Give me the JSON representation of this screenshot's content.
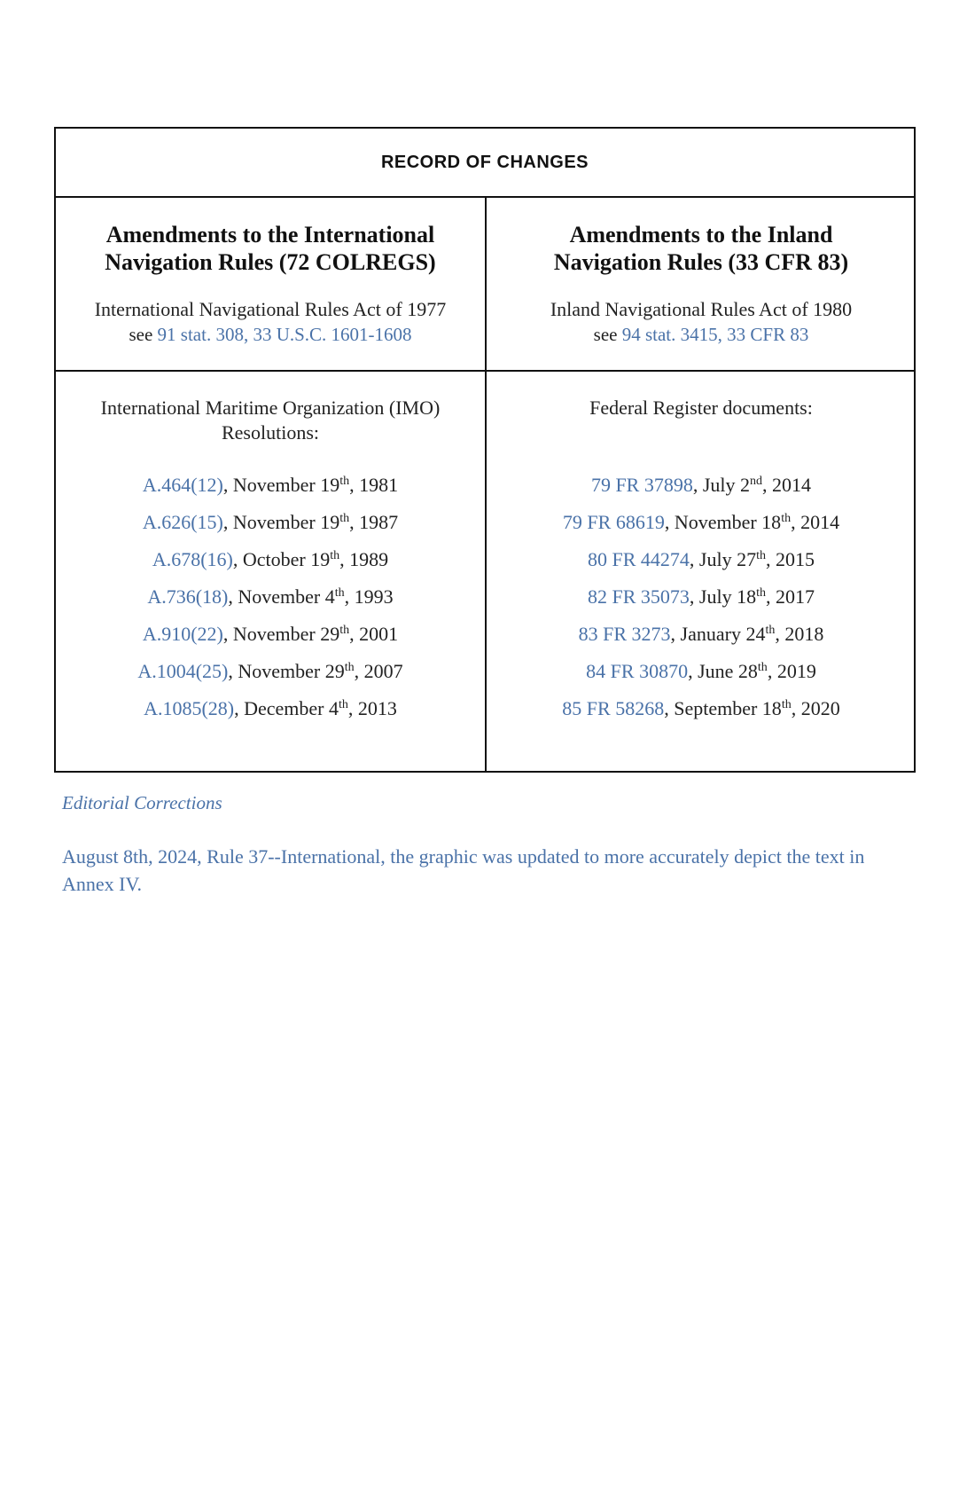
{
  "table": {
    "title": "RECORD OF CHANGES",
    "international": {
      "heading_line1": "Amendments to the International",
      "heading_line2": "Navigation Rules (72 COLREGS)",
      "act": "International Navigational Rules Act of 1977",
      "see_prefix": "see",
      "see_link": "91 stat. 308, 33 U.S.C. 1601-1608",
      "intro_line1": "International Maritime Organization (IMO)",
      "intro_line2": "Resolutions:",
      "entries": [
        {
          "ref": "A.464(12)",
          "month": ", November 19",
          "suffix": "th",
          "year": ", 1981"
        },
        {
          "ref": "A.626(15)",
          "month": ", November 19",
          "suffix": "th",
          "year": ", 1987"
        },
        {
          "ref": "A.678(16)",
          "month": ", October 19",
          "suffix": "th",
          "year": ", 1989"
        },
        {
          "ref": "A.736(18)",
          "month": ", November 4",
          "suffix": "th",
          "year": ", 1993"
        },
        {
          "ref": "A.910(22)",
          "month": ", November 29",
          "suffix": "th",
          "year": ", 2001"
        },
        {
          "ref": "A.1004(25)",
          "month": ", November 29",
          "suffix": "th",
          "year": ", 2007"
        },
        {
          "ref": "A.1085(28)",
          "month": ", December 4",
          "suffix": "th",
          "year": ", 2013"
        }
      ]
    },
    "inland": {
      "heading_line1": "Amendments to the Inland",
      "heading_line2": "Navigation Rules (33 CFR 83)",
      "act": "Inland Navigational Rules Act of 1980",
      "see_prefix": "see",
      "see_link": "94 stat. 3415, 33 CFR 83",
      "intro": "Federal Register documents:",
      "entries": [
        {
          "ref": "79 FR 37898",
          "month": ", July 2",
          "suffix": "nd",
          "year": ", 2014"
        },
        {
          "ref": "79 FR 68619",
          "month": ", November 18",
          "suffix": "th",
          "year": ", 2014"
        },
        {
          "ref": "80 FR 44274",
          "month": ", July 27",
          "suffix": "th",
          "year": ", 2015"
        },
        {
          "ref": "82 FR 35073",
          "month": ", July 18",
          "suffix": "th",
          "year": ", 2017"
        },
        {
          "ref": "83 FR 3273",
          "month": ", January 24",
          "suffix": "th",
          "year": ", 2018"
        },
        {
          "ref": "84 FR 30870",
          "month": ", June 28",
          "suffix": "th",
          "year": ", 2019"
        },
        {
          "ref": "85 FR 58268",
          "month": ", September 18",
          "suffix": "th",
          "year": ", 2020"
        }
      ]
    }
  },
  "editorial": {
    "heading": "Editorial Corrections",
    "note": "August  8th, 2024, Rule 37--International, the graphic was updated to more accurately depict the text in Annex IV."
  },
  "colors": {
    "link": "#4a72a8",
    "text": "#222222",
    "border": "#111111"
  }
}
